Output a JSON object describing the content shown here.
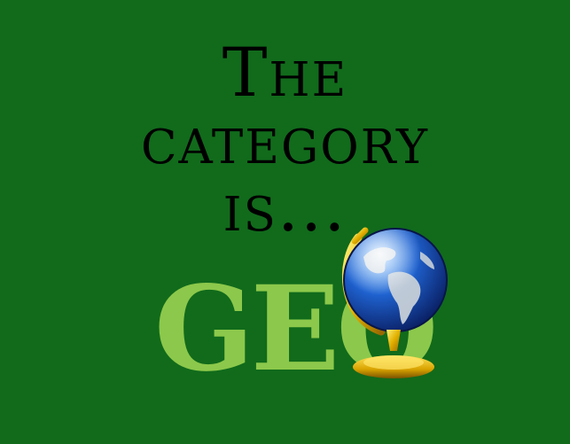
{
  "heading": {
    "line1": "The",
    "line2": "category",
    "line3": "is..."
  },
  "logo": {
    "text": "GEO",
    "text_color": "#8cc84b"
  },
  "icons": {
    "globe": "globe-icon"
  },
  "colors": {
    "background": "#116b1b",
    "heading_text": "#000000",
    "globe_ocean": "#1e5bc4",
    "globe_land": "#cfd8df",
    "globe_stand": "#e6b800"
  }
}
